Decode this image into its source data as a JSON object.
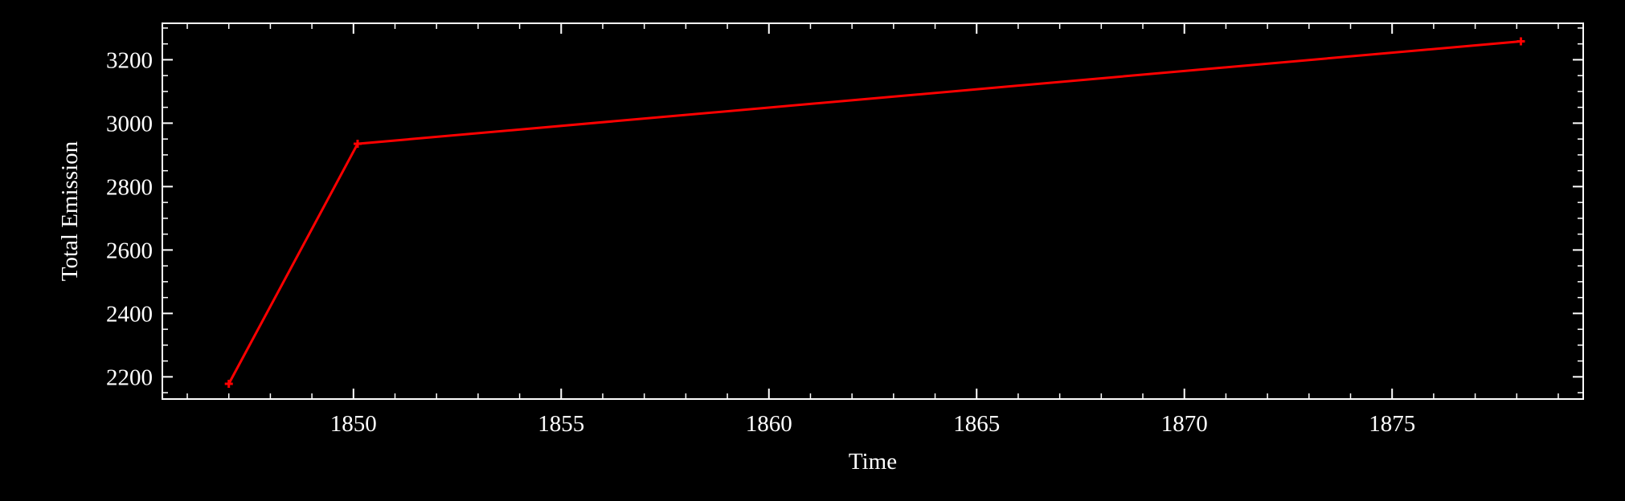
{
  "chart_data": {
    "type": "line",
    "title": "",
    "xlabel": "Time",
    "ylabel": "Total Emission",
    "xlim": [
      1845.4,
      1879.6
    ],
    "ylim": [
      2130,
      3315
    ],
    "x_ticks": [
      1850,
      1855,
      1860,
      1865,
      1870,
      1875
    ],
    "x_tick_labels": [
      "1850",
      "1855",
      "1860",
      "1865",
      "1870",
      "1875"
    ],
    "x_minor_step": 1,
    "y_ticks": [
      2200,
      2400,
      2600,
      2800,
      3000,
      3200
    ],
    "y_tick_labels": [
      "2200",
      "2400",
      "2600",
      "2800",
      "3000",
      "3200"
    ],
    "y_minor_step": 50,
    "grid": false,
    "background": "#000000",
    "axis_color": "#ffffff",
    "series": [
      {
        "color": "#ff0000",
        "marker": "plus",
        "x": [
          1847.0,
          1850.1,
          1878.1
        ],
        "y": [
          2178,
          2935,
          3258
        ]
      }
    ]
  }
}
